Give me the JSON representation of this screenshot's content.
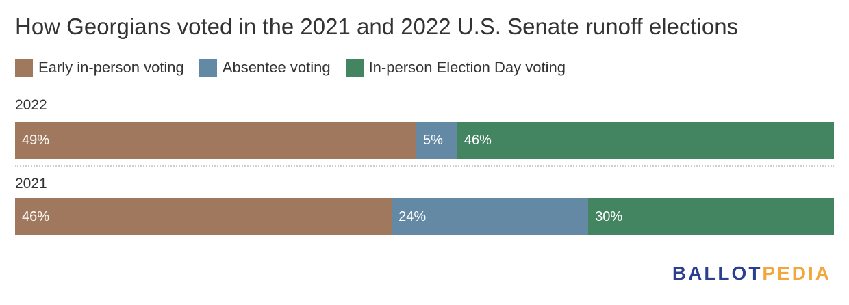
{
  "title": "How Georgians voted in the 2021 and 2022 U.S. Senate runoff elections",
  "logo": {
    "part1": "BALLOT",
    "part2": "PEDIA",
    "color1": "#2b3f8f",
    "color2": "#f2a63b"
  },
  "chart_data": {
    "type": "bar",
    "orientation": "horizontal-stacked-100",
    "categories": [
      "2022",
      "2021"
    ],
    "series": [
      {
        "name": "Early in-person voting",
        "color": "#a0785e",
        "values": [
          49,
          46
        ],
        "labels": [
          "49%",
          "46%"
        ]
      },
      {
        "name": "Absentee voting",
        "color": "#6389a4",
        "values": [
          5,
          24
        ],
        "labels": [
          "5%",
          "24%"
        ]
      },
      {
        "name": "In-person Election Day voting",
        "color": "#438461",
        "values": [
          46,
          30
        ],
        "labels": [
          "46%",
          "30%"
        ]
      }
    ],
    "xlim": [
      0,
      100
    ],
    "legend": "top-left",
    "grid": false
  }
}
